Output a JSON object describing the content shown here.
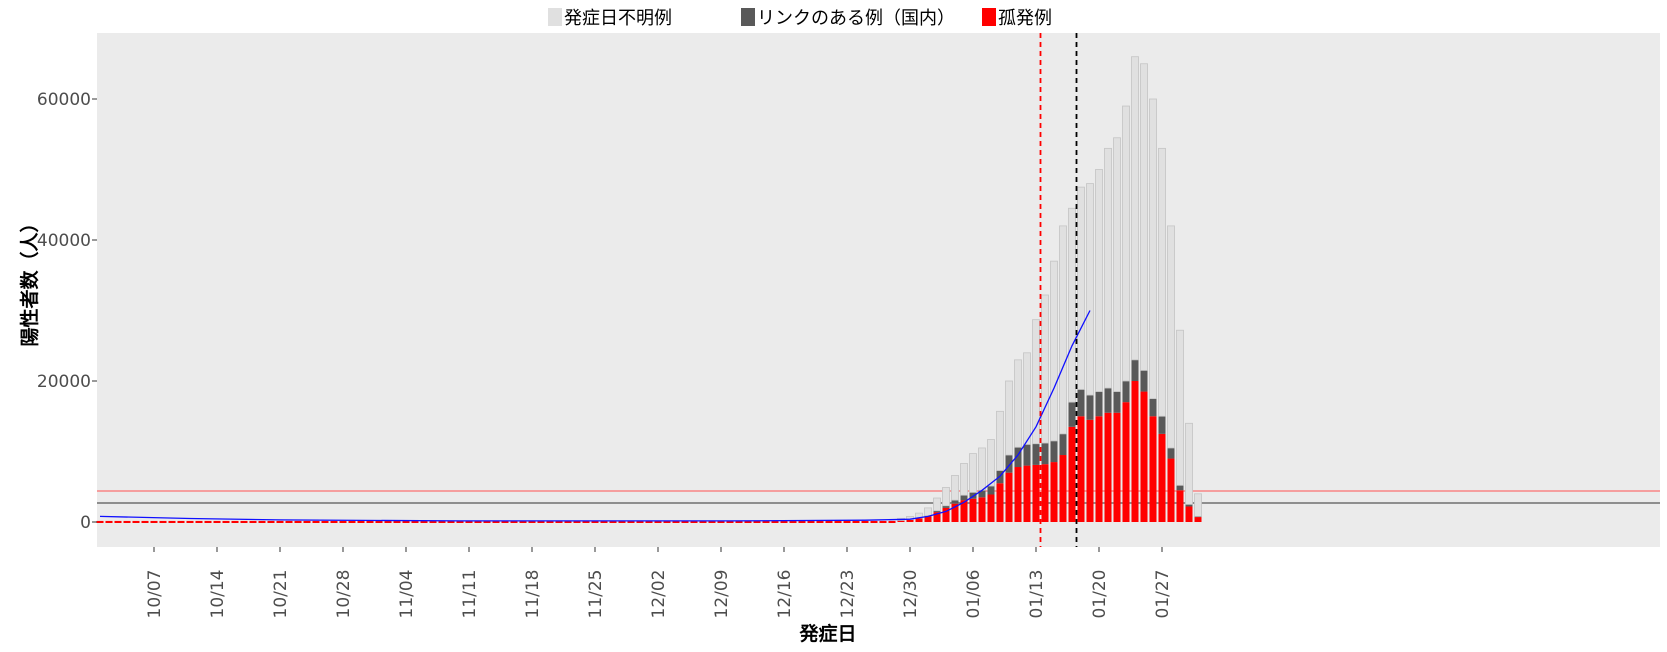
{
  "chart_data": {
    "type": "bar",
    "stacked": true,
    "xlabel": "発症日",
    "ylabel": "陽性者数（人）",
    "ylim": [
      -3000,
      68000
    ],
    "y_ticks": [
      0,
      20000,
      40000,
      60000
    ],
    "x_tick_labels": [
      "10/07",
      "10/14",
      "10/21",
      "10/28",
      "11/04",
      "11/11",
      "11/18",
      "11/25",
      "12/02",
      "12/09",
      "12/16",
      "12/23",
      "12/30",
      "01/06",
      "01/13",
      "01/20",
      "01/27"
    ],
    "x_start_date": "2021-10-01",
    "grid": false,
    "legend_position": "top",
    "colors": {
      "panel": "#ebebeb",
      "unknown": "#e0e0e0",
      "unknown_border": "#c4c4c4",
      "linked": "#595959",
      "isolated": "#ff0000",
      "trend": "#1010ff",
      "hline_red": "#ff5050",
      "hline_dark": "#303030",
      "vline_red": "#ff0000",
      "vline_black": "#000000"
    },
    "series": [
      {
        "name": "発症日不明例",
        "key": "unknown"
      },
      {
        "name": "リンクのある例（国内）",
        "key": "linked"
      },
      {
        "name": "孤発例",
        "key": "isolated"
      }
    ],
    "trend_line": [
      [
        0,
        800
      ],
      [
        10,
        500
      ],
      [
        20,
        300
      ],
      [
        40,
        150
      ],
      [
        70,
        150
      ],
      [
        85,
        250
      ],
      [
        90,
        400
      ],
      [
        92,
        800
      ],
      [
        94,
        1500
      ],
      [
        96,
        2800
      ],
      [
        98,
        4500
      ],
      [
        100,
        6500
      ],
      [
        102,
        9500
      ],
      [
        104,
        13500
      ],
      [
        106,
        19000
      ],
      [
        108,
        25000
      ],
      [
        110,
        30000
      ]
    ],
    "hlines": [
      {
        "y": 4400,
        "color": "hline_red"
      },
      {
        "y": 2700,
        "color": "hline_dark"
      }
    ],
    "vlines": [
      {
        "day": 104.5,
        "color": "vline_red"
      },
      {
        "day": 108.5,
        "color": "vline_black"
      }
    ],
    "bars": [
      {
        "day": 89,
        "isolated": 200,
        "linked": 20,
        "unknown": 300
      },
      {
        "day": 90,
        "isolated": 300,
        "linked": 40,
        "unknown": 450
      },
      {
        "day": 91,
        "isolated": 500,
        "linked": 60,
        "unknown": 700
      },
      {
        "day": 92,
        "isolated": 800,
        "linked": 100,
        "unknown": 1100
      },
      {
        "day": 93,
        "isolated": 1400,
        "linked": 200,
        "unknown": 1800
      },
      {
        "day": 94,
        "isolated": 2000,
        "linked": 300,
        "unknown": 2600
      },
      {
        "day": 95,
        "isolated": 2600,
        "linked": 500,
        "unknown": 3500
      },
      {
        "day": 96,
        "isolated": 3100,
        "linked": 700,
        "unknown": 4500
      },
      {
        "day": 97,
        "isolated": 3300,
        "linked": 900,
        "unknown": 5500
      },
      {
        "day": 98,
        "isolated": 3500,
        "linked": 1000,
        "unknown": 6000
      },
      {
        "day": 99,
        "isolated": 3900,
        "linked": 1200,
        "unknown": 6600
      },
      {
        "day": 100,
        "isolated": 5500,
        "linked": 1800,
        "unknown": 8400
      },
      {
        "day": 101,
        "isolated": 7000,
        "linked": 2500,
        "unknown": 10500
      },
      {
        "day": 102,
        "isolated": 7800,
        "linked": 2800,
        "unknown": 12400
      },
      {
        "day": 103,
        "isolated": 8000,
        "linked": 3000,
        "unknown": 13000
      },
      {
        "day": 104,
        "isolated": 8100,
        "linked": 3000,
        "unknown": 17600
      },
      {
        "day": 105,
        "isolated": 8200,
        "linked": 3000,
        "unknown": 21000
      },
      {
        "day": 106,
        "isolated": 8500,
        "linked": 3000,
        "unknown": 25500
      },
      {
        "day": 107,
        "isolated": 9500,
        "linked": 3000,
        "unknown": 29500
      },
      {
        "day": 108,
        "isolated": 13500,
        "linked": 3500,
        "unknown": 27500
      },
      {
        "day": 109,
        "isolated": 15000,
        "linked": 3800,
        "unknown": 28700
      },
      {
        "day": 110,
        "isolated": 14500,
        "linked": 3500,
        "unknown": 30000
      },
      {
        "day": 111,
        "isolated": 15000,
        "linked": 3500,
        "unknown": 31500
      },
      {
        "day": 112,
        "isolated": 15500,
        "linked": 3500,
        "unknown": 34000
      },
      {
        "day": 113,
        "isolated": 15500,
        "linked": 3000,
        "unknown": 36000
      },
      {
        "day": 114,
        "isolated": 17000,
        "linked": 3000,
        "unknown": 39000
      },
      {
        "day": 115,
        "isolated": 20000,
        "linked": 3000,
        "unknown": 43000
      },
      {
        "day": 116,
        "isolated": 18500,
        "linked": 3000,
        "unknown": 43500
      },
      {
        "day": 117,
        "isolated": 15000,
        "linked": 2500,
        "unknown": 42500
      },
      {
        "day": 118,
        "isolated": 12500,
        "linked": 2500,
        "unknown": 38000
      },
      {
        "day": 119,
        "isolated": 9000,
        "linked": 1500,
        "unknown": 31500
      },
      {
        "day": 120,
        "isolated": 4500,
        "linked": 700,
        "unknown": 22000
      },
      {
        "day": 121,
        "isolated": 2200,
        "linked": 300,
        "unknown": 11500
      },
      {
        "day": 122,
        "isolated": 700,
        "linked": 100,
        "unknown": 3200
      }
    ]
  }
}
